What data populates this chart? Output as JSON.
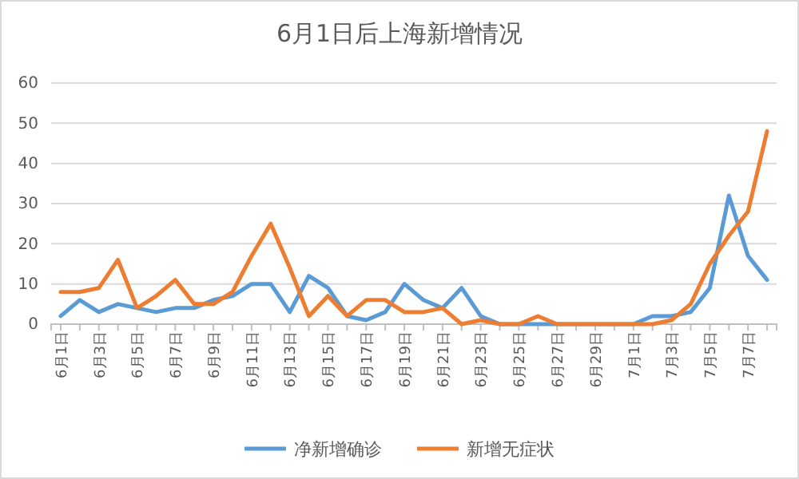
{
  "chart_data": {
    "type": "line",
    "title": "6月1日后上海新增情况",
    "categories": [
      "6月1日",
      null,
      "6月3日",
      null,
      "6月5日",
      null,
      "6月7日",
      null,
      "6月9日",
      null,
      "6月11日",
      null,
      "6月13日",
      null,
      "6月15日",
      null,
      "6月17日",
      null,
      "6月19日",
      null,
      "6月21日",
      null,
      "6月23日",
      null,
      "6月25日",
      null,
      "6月27日",
      null,
      "6月29日",
      null,
      "7月1日",
      null,
      "7月3日",
      null,
      "7月5日",
      null,
      "7月7日",
      null
    ],
    "series": [
      {
        "name": "净新增确诊",
        "color": "#5b9bd5",
        "values": [
          2,
          6,
          3,
          5,
          4,
          3,
          4,
          4,
          6,
          7,
          10,
          10,
          3,
          12,
          9,
          2,
          1,
          3,
          10,
          6,
          4,
          9,
          2,
          0,
          0,
          0,
          0,
          0,
          0,
          0,
          0,
          2,
          2,
          3,
          9,
          32,
          17,
          11
        ]
      },
      {
        "name": "新增无症状",
        "color": "#ed7d31",
        "values": [
          8,
          8,
          9,
          16,
          4,
          7,
          11,
          5,
          5,
          8,
          17,
          25,
          14,
          2,
          7,
          2,
          6,
          6,
          3,
          3,
          4,
          0,
          1,
          0,
          0,
          2,
          0,
          0,
          0,
          0,
          0,
          0,
          1,
          5,
          15,
          22,
          28,
          48
        ]
      }
    ],
    "ylim": [
      0,
      60
    ],
    "yticks": [
      0,
      10,
      20,
      30,
      40,
      50,
      60
    ],
    "grid": "y",
    "legend": "bottom",
    "marker": "none",
    "line_style": "solid"
  }
}
